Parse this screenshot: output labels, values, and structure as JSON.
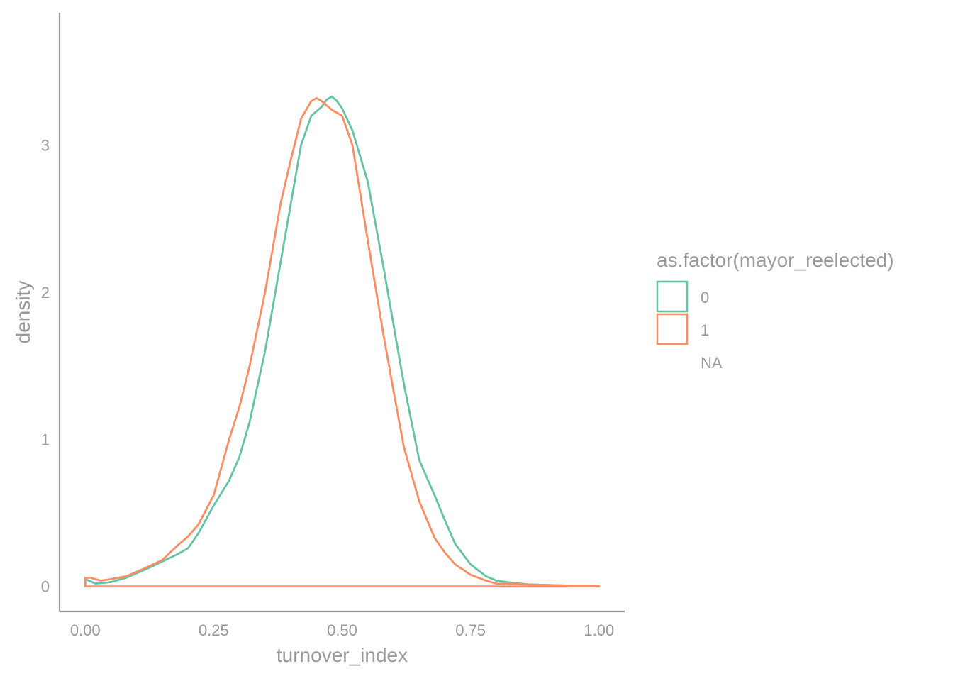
{
  "chart_data": {
    "type": "line",
    "subtype": "density",
    "xlabel": "turnover_index",
    "ylabel": "density",
    "xlim": [
      -0.05,
      1.05
    ],
    "ylim": [
      -0.17,
      3.9
    ],
    "x_ticks": [
      0.0,
      0.25,
      0.5,
      0.75,
      1.0
    ],
    "x_tick_labels": [
      "0.00",
      "0.25",
      "0.50",
      "0.75",
      "1.00"
    ],
    "y_ticks": [
      0,
      1,
      2,
      3
    ],
    "y_tick_labels": [
      "0",
      "1",
      "2",
      "3"
    ],
    "grid": false,
    "legend": {
      "title": "as.factor(mayor_reelected)",
      "position": "right",
      "entries": [
        {
          "label": "0",
          "color": "#66C2A5",
          "key": true
        },
        {
          "label": "1",
          "color": "#FC8D62",
          "key": true
        },
        {
          "label": "NA",
          "color": null,
          "key": false
        }
      ]
    },
    "series": [
      {
        "name": "0",
        "color": "#66C2A5",
        "x": [
          0.0,
          0.02,
          0.05,
          0.08,
          0.1,
          0.12,
          0.15,
          0.18,
          0.2,
          0.22,
          0.25,
          0.28,
          0.3,
          0.32,
          0.35,
          0.38,
          0.4,
          0.42,
          0.44,
          0.45,
          0.46,
          0.47,
          0.48,
          0.49,
          0.5,
          0.52,
          0.55,
          0.58,
          0.6,
          0.62,
          0.65,
          0.68,
          0.7,
          0.72,
          0.75,
          0.78,
          0.8,
          0.83,
          0.86,
          0.9,
          0.95,
          1.0
        ],
        "y": [
          0.05,
          0.02,
          0.03,
          0.06,
          0.09,
          0.12,
          0.17,
          0.22,
          0.26,
          0.36,
          0.55,
          0.72,
          0.88,
          1.12,
          1.6,
          2.2,
          2.6,
          3.0,
          3.2,
          3.23,
          3.26,
          3.31,
          3.33,
          3.3,
          3.25,
          3.1,
          2.75,
          2.18,
          1.78,
          1.38,
          0.86,
          0.62,
          0.45,
          0.29,
          0.15,
          0.07,
          0.04,
          0.025,
          0.015,
          0.01,
          0.005,
          0.005
        ]
      },
      {
        "name": "1",
        "color": "#FC8D62",
        "x": [
          0.0,
          0.01,
          0.03,
          0.05,
          0.08,
          0.1,
          0.12,
          0.15,
          0.18,
          0.2,
          0.22,
          0.25,
          0.28,
          0.3,
          0.32,
          0.35,
          0.38,
          0.4,
          0.42,
          0.44,
          0.45,
          0.46,
          0.47,
          0.48,
          0.5,
          0.52,
          0.55,
          0.58,
          0.6,
          0.62,
          0.65,
          0.68,
          0.7,
          0.72,
          0.75,
          0.78,
          0.8,
          0.85,
          0.9,
          0.95,
          1.0
        ],
        "y": [
          0.06,
          0.06,
          0.04,
          0.05,
          0.07,
          0.1,
          0.13,
          0.18,
          0.28,
          0.34,
          0.42,
          0.62,
          1.0,
          1.22,
          1.5,
          2.0,
          2.6,
          2.9,
          3.18,
          3.3,
          3.32,
          3.3,
          3.27,
          3.24,
          3.2,
          3.0,
          2.35,
          1.72,
          1.33,
          0.95,
          0.58,
          0.33,
          0.23,
          0.15,
          0.08,
          0.04,
          0.02,
          0.015,
          0.01,
          0.005,
          0.005
        ]
      }
    ]
  }
}
